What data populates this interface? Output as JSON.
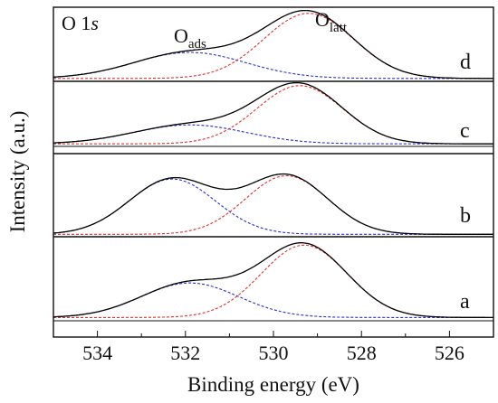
{
  "chart_data": {
    "type": "line",
    "region_label": {
      "main": "O 1",
      "italic": "s"
    },
    "xlabel": "Binding energy (eV)",
    "ylabel": "Intensity (a.u.)",
    "xlim": [
      535,
      525
    ],
    "x_reversed": true,
    "x_ticks": [
      534,
      532,
      530,
      528,
      526
    ],
    "y_ticks_shown": false,
    "legend": "none",
    "colors": {
      "envelope": "#000000",
      "adsorbed_component": "#2b2bd9",
      "lattice_component": "#e03030"
    },
    "peak_annotations": [
      {
        "main": "O",
        "sub": "ads",
        "x": 532.2
      },
      {
        "main": "O",
        "sub": "latt",
        "x": 529.3
      }
    ],
    "panels": [
      {
        "label": "d",
        "baseline": 0.04,
        "components": [
          {
            "name": "O_ads",
            "center": 531.9,
            "height": 0.36,
            "fwhm": 3.0
          },
          {
            "name": "O_latt",
            "center": 529.2,
            "height": 0.9,
            "fwhm": 2.4
          }
        ]
      },
      {
        "label": "c",
        "baseline": 0.04,
        "components": [
          {
            "name": "O_ads",
            "center": 531.9,
            "height": 0.3,
            "fwhm": 3.0
          },
          {
            "name": "O_latt",
            "center": 529.4,
            "height": 0.92,
            "fwhm": 2.3
          }
        ]
      },
      {
        "label": "b",
        "baseline": 0.03,
        "components": [
          {
            "name": "O_ads",
            "center": 532.3,
            "height": 0.68,
            "fwhm": 2.3
          },
          {
            "name": "O_latt",
            "center": 529.7,
            "height": 0.72,
            "fwhm": 2.2
          }
        ]
      },
      {
        "label": "a",
        "baseline": 0.04,
        "components": [
          {
            "name": "O_ads",
            "center": 531.9,
            "height": 0.42,
            "fwhm": 2.6
          },
          {
            "name": "O_latt",
            "center": 529.3,
            "height": 0.88,
            "fwhm": 2.3
          }
        ]
      }
    ]
  }
}
